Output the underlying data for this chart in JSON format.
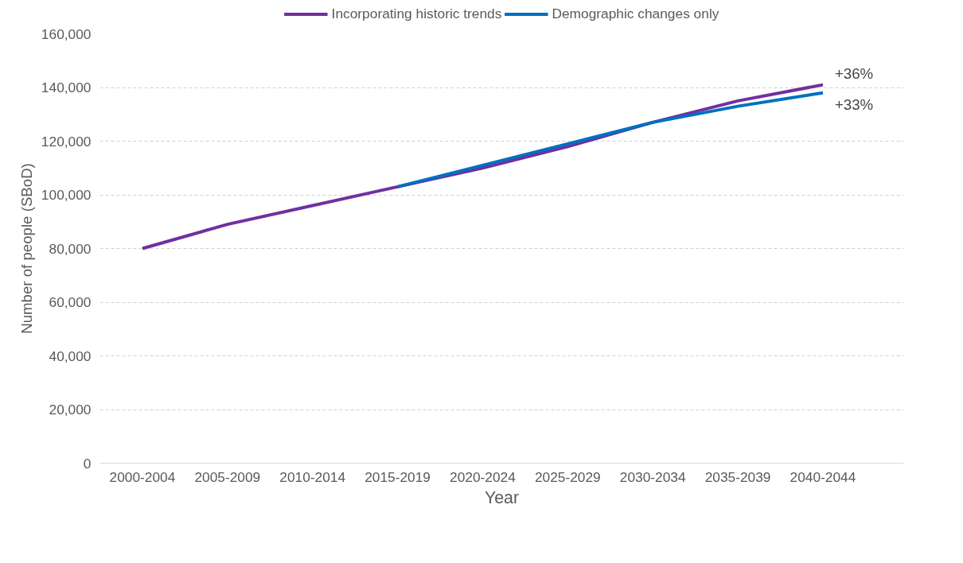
{
  "chart_data": {
    "type": "line",
    "xlabel": "Year",
    "ylabel": "Number of people (SBoD)",
    "categories": [
      "2000-2004",
      "2005-2009",
      "2010-2014",
      "2015-2019",
      "2020-2024",
      "2025-2029",
      "2030-2034",
      "2035-2039",
      "2040-2044"
    ],
    "series": [
      {
        "name": "Incorporating historic trends",
        "color": "#7030a0",
        "values": [
          80000,
          89000,
          96000,
          103000,
          110000,
          118000,
          127000,
          135000,
          141000
        ]
      },
      {
        "name": "Demographic changes only",
        "color": "#0070c0",
        "values": [
          null,
          null,
          null,
          103000,
          111000,
          119000,
          127000,
          133000,
          138000
        ]
      }
    ],
    "ylim": [
      0,
      160000
    ],
    "yticks": [
      {
        "value": 0,
        "label": "0"
      },
      {
        "value": 20000,
        "label": "20,000"
      },
      {
        "value": 40000,
        "label": "40,000"
      },
      {
        "value": 60000,
        "label": "60,000"
      },
      {
        "value": 80000,
        "label": "80,000"
      },
      {
        "value": 100000,
        "label": "100,000"
      },
      {
        "value": 120000,
        "label": "120,000"
      },
      {
        "value": 140000,
        "label": "140,000"
      },
      {
        "value": 160000,
        "label": "160,000"
      }
    ],
    "grid": "y",
    "legend": "top",
    "marker": "none",
    "line_style": "solid",
    "annotations": [
      {
        "text": "+36%",
        "x": "2040-2044",
        "y": 141000
      },
      {
        "text": "+33%",
        "x": "2040-2044",
        "y": 138000
      }
    ]
  }
}
